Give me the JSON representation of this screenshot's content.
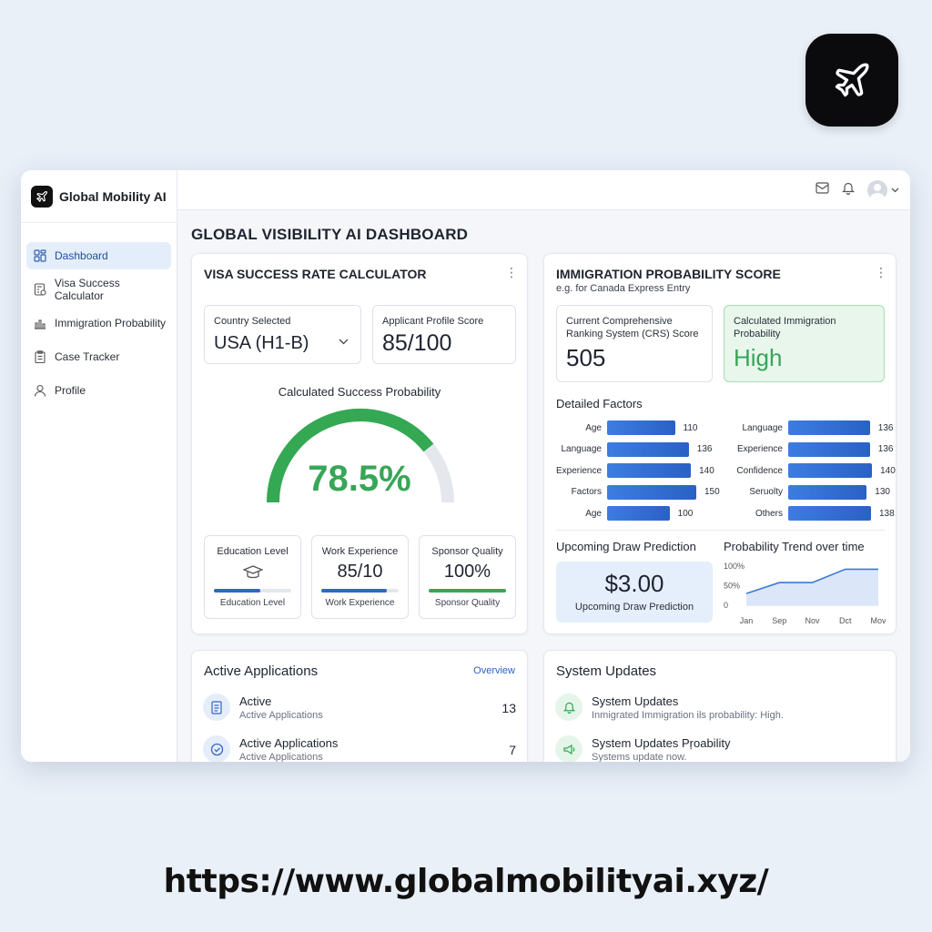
{
  "brand": {
    "name": "Global Mobility AI"
  },
  "sidebar": {
    "items": [
      {
        "label": "Dashboard",
        "icon": "grid-icon",
        "active": true
      },
      {
        "label": "Visa Success Calculator",
        "icon": "calculator-icon",
        "active": false
      },
      {
        "label": "Immigration Probability",
        "icon": "bar-chart-icon",
        "active": false
      },
      {
        "label": "Case Tracker",
        "icon": "clipboard-icon",
        "active": false
      },
      {
        "label": "Profile",
        "icon": "user-icon",
        "active": false
      }
    ]
  },
  "topbar": {
    "icons": [
      "mail-icon",
      "bell-icon",
      "avatar",
      "chevron-down-icon"
    ]
  },
  "page": {
    "title": "GLOBAL VISIBILITY AI DASHBOARD"
  },
  "visa": {
    "title": "VISA SUCCESS RATE CALCULATOR",
    "country_label": "Country Selected",
    "country_value": "USA (H1-B)",
    "profile_label": "Applicant Profile Score",
    "profile_value": "85/100",
    "gauge_title": "Calculated Success Probability",
    "gauge_value": "78.5%",
    "gauge_fraction": 0.785,
    "metrics": [
      {
        "title": "Education Level",
        "value": "",
        "icon": "graduation-cap-icon",
        "foot": "Education Level",
        "bar": 0.6,
        "color": "#2f66c8"
      },
      {
        "title": "Work Experience",
        "value": "85/10",
        "foot": "Work Experience",
        "bar": 0.85,
        "color": "#2f66c8"
      },
      {
        "title": "Sponsor Quality",
        "value": "100%",
        "foot": "Sponsor Quality",
        "bar": 1.0,
        "color": "#34a853"
      }
    ]
  },
  "immigration": {
    "title": "IMMIGRATION PROBABILITY SCORE",
    "subtitle": "e.g. for Canada Express Entry",
    "crs_label": "Current Comprehensive Ranking System (CRS) Score",
    "crs_value": "505",
    "calc_label": "Calculated Immigration Probability",
    "calc_value": "High",
    "factors_title": "Detailed Factors",
    "factors_left": [
      {
        "name": "Age",
        "value": 110
      },
      {
        "name": "Language",
        "value": 136
      },
      {
        "name": "Experience",
        "value": 140
      },
      {
        "name": "Factors",
        "value": 150
      },
      {
        "name": "Age",
        "value": 100
      }
    ],
    "factors_right": [
      {
        "name": "Language",
        "value": 136
      },
      {
        "name": "Experience",
        "value": 136
      },
      {
        "name": "Confidence",
        "value": 140
      },
      {
        "name": "Seruolty",
        "value": 130
      },
      {
        "name": "Others",
        "value": 138
      }
    ],
    "draw_title": "Upcoming Draw Prediction",
    "draw_value": "$3.00",
    "draw_sub": "Upcoming Draw Prediction",
    "trend_title": "Probability Trend over time"
  },
  "chart_data": {
    "type": "area",
    "title": "Probability Trend over time",
    "categories": [
      "Jan",
      "Sep",
      "Nov",
      "Dct",
      "Mov"
    ],
    "y_ticks": [
      "100%",
      "50%",
      "0"
    ],
    "ylim": [
      0,
      100
    ],
    "series": [
      {
        "values": [
          30,
          58,
          58,
          92,
          92
        ]
      }
    ],
    "grid": false
  },
  "active_apps": {
    "title": "Active Applications",
    "link": "Overview",
    "rows": [
      {
        "title": "Active",
        "sub": "Active Applications",
        "count": "13",
        "icon": "document-icon"
      },
      {
        "title": "Active Applications",
        "sub": "Active Applications",
        "count": "7",
        "icon": "check-circle-icon"
      }
    ]
  },
  "updates": {
    "title": "System Updates",
    "rows": [
      {
        "title": "System Updates",
        "sub": "Inmigrated Immigration ils probability: High.",
        "icon": "bell-icon"
      },
      {
        "title": "System Updates Pŗoability",
        "sub": "Systems update now.",
        "icon": "megaphone-icon"
      }
    ]
  },
  "footer": {
    "url": "https://www.globalmobilityai.xyz/"
  }
}
